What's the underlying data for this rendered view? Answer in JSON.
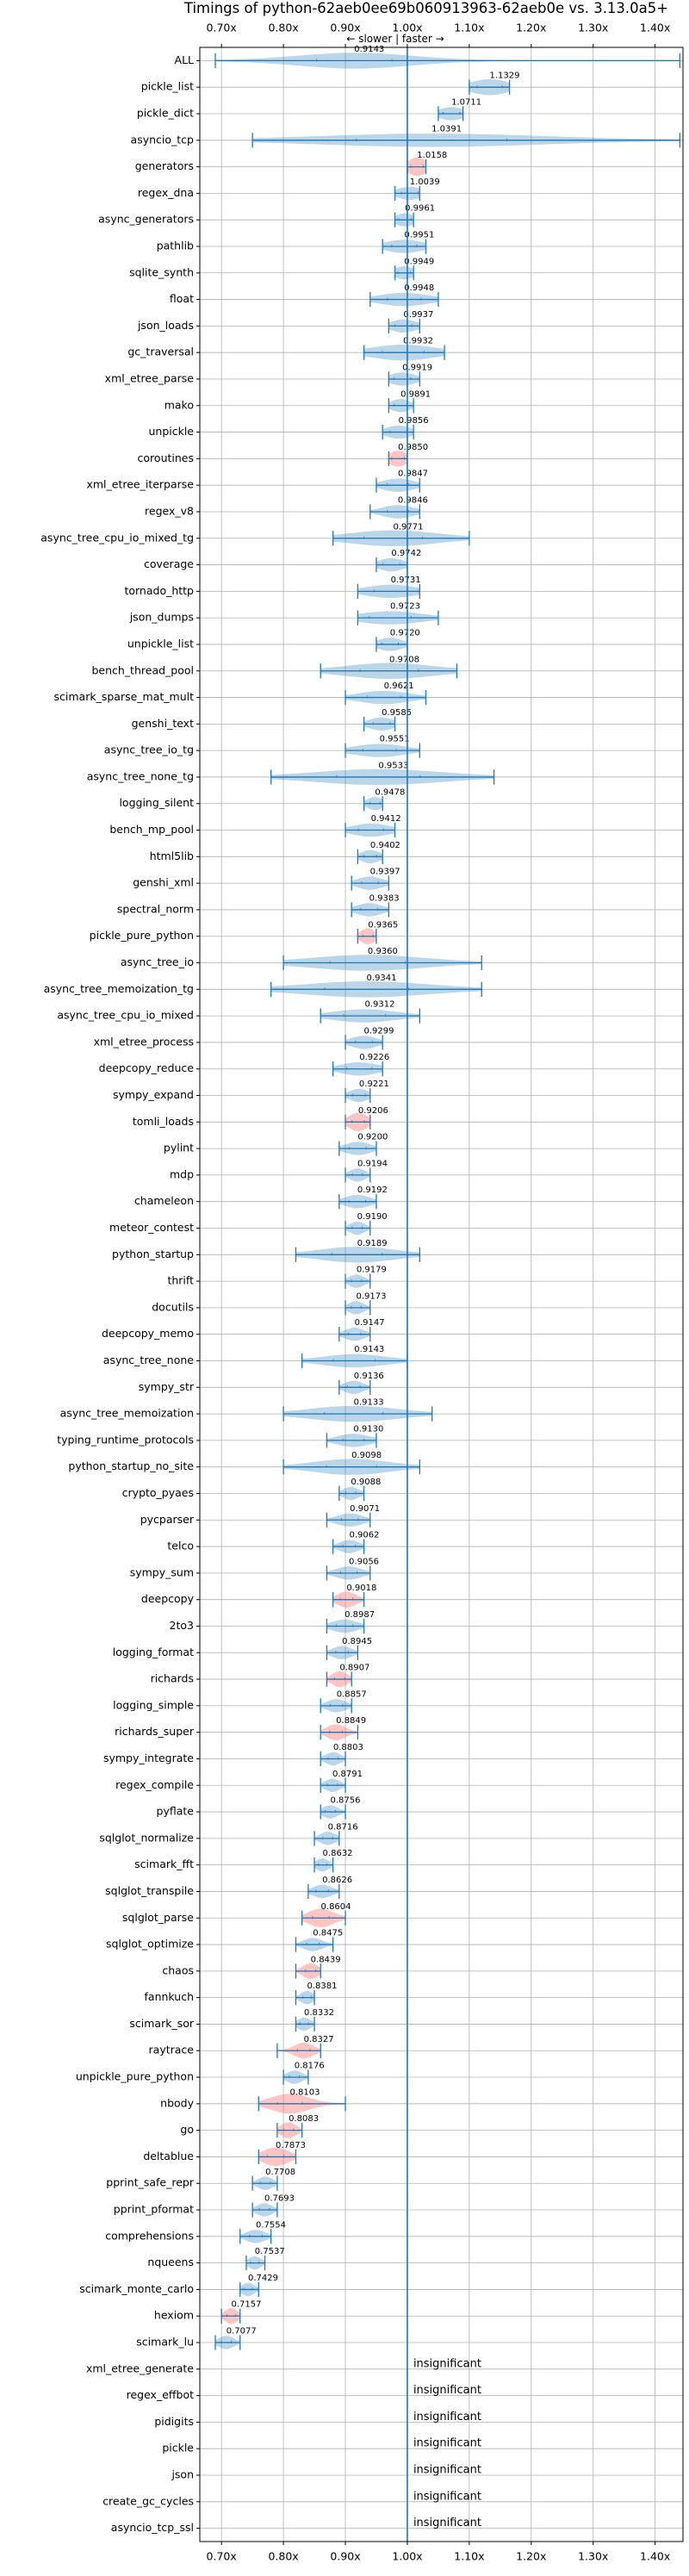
{
  "chart_data": {
    "type": "violin",
    "title": "Timings of python-62aeb0ee69b060913963-62aeb0e vs. 3.13.0a5+",
    "direction_label": "← slower | faster →",
    "x_ticks": [
      0.7,
      0.8,
      0.9,
      1.0,
      1.1,
      1.2,
      1.3,
      1.4
    ],
    "x_tick_labels": [
      "0.70x",
      "0.80x",
      "0.90x",
      "1.00x",
      "1.10x",
      "1.20x",
      "1.30x",
      "1.40x"
    ],
    "xlim": [
      0.665,
      1.445
    ],
    "insignificant_label": "insignificant",
    "colors": {
      "violin": "#1f77b4",
      "highlight": "#ff7f7f",
      "grid": "#b0b0b0"
    },
    "benchmarks": [
      {
        "name": "ALL",
        "value": 0.9143,
        "label": "0.9143",
        "min": 0.69,
        "max": 1.44,
        "spread": 0.09,
        "width": 0.6,
        "hl": false
      },
      {
        "name": "pickle_list",
        "value": 1.1329,
        "label": "1.1329",
        "min": 1.1,
        "max": 1.165,
        "spread": 0.03,
        "width": 0.6,
        "hl": false
      },
      {
        "name": "pickle_dict",
        "value": 1.0711,
        "label": "1.0711",
        "min": 1.05,
        "max": 1.09,
        "spread": 0.02,
        "width": 0.5,
        "hl": false
      },
      {
        "name": "asyncio_tcp",
        "value": 1.0391,
        "label": "1.0391",
        "min": 0.75,
        "max": 1.44,
        "spread": 0.18,
        "width": 0.5,
        "hl": false
      },
      {
        "name": "generators",
        "value": 1.0158,
        "label": "1.0158",
        "min": 1.0,
        "max": 1.03,
        "spread": 0.015,
        "width": 0.7,
        "hl": true
      },
      {
        "name": "regex_dna",
        "value": 1.0039,
        "label": "1.0039",
        "min": 0.98,
        "max": 1.02,
        "spread": 0.02,
        "width": 0.5,
        "hl": false
      },
      {
        "name": "async_generators",
        "value": 0.9961,
        "label": "0.9961",
        "min": 0.98,
        "max": 1.01,
        "spread": 0.015,
        "width": 0.5,
        "hl": false
      },
      {
        "name": "pathlib",
        "value": 0.9951,
        "label": "0.9951",
        "min": 0.96,
        "max": 1.03,
        "spread": 0.03,
        "width": 0.5,
        "hl": false
      },
      {
        "name": "sqlite_synth",
        "value": 0.9949,
        "label": "0.9949",
        "min": 0.98,
        "max": 1.01,
        "spread": 0.015,
        "width": 0.5,
        "hl": false
      },
      {
        "name": "float",
        "value": 0.9948,
        "label": "0.9948",
        "min": 0.94,
        "max": 1.05,
        "spread": 0.04,
        "width": 0.5,
        "hl": false
      },
      {
        "name": "json_loads",
        "value": 0.9937,
        "label": "0.9937",
        "min": 0.97,
        "max": 1.02,
        "spread": 0.02,
        "width": 0.5,
        "hl": false
      },
      {
        "name": "gc_traversal",
        "value": 0.9932,
        "label": "0.9932",
        "min": 0.93,
        "max": 1.06,
        "spread": 0.05,
        "width": 0.6,
        "hl": false
      },
      {
        "name": "xml_etree_parse",
        "value": 0.9919,
        "label": "0.9919",
        "min": 0.97,
        "max": 1.02,
        "spread": 0.02,
        "width": 0.5,
        "hl": false
      },
      {
        "name": "mako",
        "value": 0.9891,
        "label": "0.9891",
        "min": 0.97,
        "max": 1.01,
        "spread": 0.015,
        "width": 0.5,
        "hl": false
      },
      {
        "name": "unpickle",
        "value": 0.9856,
        "label": "0.9856",
        "min": 0.96,
        "max": 1.01,
        "spread": 0.02,
        "width": 0.5,
        "hl": false
      },
      {
        "name": "coroutines",
        "value": 0.985,
        "label": "0.9850",
        "min": 0.97,
        "max": 1.0,
        "spread": 0.015,
        "width": 0.6,
        "hl": true
      },
      {
        "name": "xml_etree_iterparse",
        "value": 0.9847,
        "label": "0.9847",
        "min": 0.95,
        "max": 1.02,
        "spread": 0.025,
        "width": 0.5,
        "hl": false
      },
      {
        "name": "regex_v8",
        "value": 0.9846,
        "label": "0.9846",
        "min": 0.94,
        "max": 1.02,
        "spread": 0.025,
        "width": 0.5,
        "hl": false
      },
      {
        "name": "async_tree_cpu_io_mixed_tg",
        "value": 0.9771,
        "label": "0.9771",
        "min": 0.88,
        "max": 1.1,
        "spread": 0.07,
        "width": 0.6,
        "hl": false
      },
      {
        "name": "coverage",
        "value": 0.9742,
        "label": "0.9742",
        "min": 0.95,
        "max": 1.0,
        "spread": 0.02,
        "width": 0.5,
        "hl": false
      },
      {
        "name": "tornado_http",
        "value": 0.9731,
        "label": "0.9731",
        "min": 0.92,
        "max": 1.02,
        "spread": 0.04,
        "width": 0.5,
        "hl": false
      },
      {
        "name": "json_dumps",
        "value": 0.9723,
        "label": "0.9723",
        "min": 0.92,
        "max": 1.05,
        "spread": 0.05,
        "width": 0.5,
        "hl": false
      },
      {
        "name": "unpickle_list",
        "value": 0.972,
        "label": "0.9720",
        "min": 0.95,
        "max": 1.0,
        "spread": 0.02,
        "width": 0.5,
        "hl": false
      },
      {
        "name": "bench_thread_pool",
        "value": 0.9708,
        "label": "0.9708",
        "min": 0.86,
        "max": 1.08,
        "spread": 0.07,
        "width": 0.6,
        "hl": false
      },
      {
        "name": "scimark_sparse_mat_mult",
        "value": 0.9621,
        "label": "0.9621",
        "min": 0.9,
        "max": 1.03,
        "spread": 0.04,
        "width": 0.5,
        "hl": false
      },
      {
        "name": "genshi_text",
        "value": 0.9585,
        "label": "0.9585",
        "min": 0.93,
        "max": 0.98,
        "spread": 0.02,
        "width": 0.5,
        "hl": false
      },
      {
        "name": "async_tree_io_tg",
        "value": 0.9551,
        "label": "0.9551",
        "min": 0.9,
        "max": 1.02,
        "spread": 0.04,
        "width": 0.5,
        "hl": false
      },
      {
        "name": "async_tree_none_tg",
        "value": 0.9533,
        "label": "0.9533",
        "min": 0.78,
        "max": 1.14,
        "spread": 0.1,
        "width": 0.6,
        "hl": false
      },
      {
        "name": "logging_silent",
        "value": 0.9478,
        "label": "0.9478",
        "min": 0.93,
        "max": 0.96,
        "spread": 0.012,
        "width": 0.5,
        "hl": false
      },
      {
        "name": "bench_mp_pool",
        "value": 0.9412,
        "label": "0.9412",
        "min": 0.9,
        "max": 0.98,
        "spread": 0.03,
        "width": 0.5,
        "hl": false
      },
      {
        "name": "html5lib",
        "value": 0.9402,
        "label": "0.9402",
        "min": 0.92,
        "max": 0.96,
        "spread": 0.015,
        "width": 0.5,
        "hl": false
      },
      {
        "name": "genshi_xml",
        "value": 0.9397,
        "label": "0.9397",
        "min": 0.91,
        "max": 0.97,
        "spread": 0.02,
        "width": 0.5,
        "hl": false
      },
      {
        "name": "spectral_norm",
        "value": 0.9383,
        "label": "0.9383",
        "min": 0.91,
        "max": 0.97,
        "spread": 0.02,
        "width": 0.5,
        "hl": false
      },
      {
        "name": "pickle_pure_python",
        "value": 0.9365,
        "label": "0.9365",
        "min": 0.92,
        "max": 0.95,
        "spread": 0.012,
        "width": 0.6,
        "hl": true
      },
      {
        "name": "async_tree_io",
        "value": 0.936,
        "label": "0.9360",
        "min": 0.8,
        "max": 1.12,
        "spread": 0.09,
        "width": 0.6,
        "hl": false
      },
      {
        "name": "async_tree_memoization_tg",
        "value": 0.9341,
        "label": "0.9341",
        "min": 0.78,
        "max": 1.12,
        "spread": 0.1,
        "width": 0.6,
        "hl": false
      },
      {
        "name": "async_tree_cpu_io_mixed",
        "value": 0.9312,
        "label": "0.9312",
        "min": 0.86,
        "max": 1.02,
        "spread": 0.05,
        "width": 0.5,
        "hl": false
      },
      {
        "name": "xml_etree_process",
        "value": 0.9299,
        "label": "0.9299",
        "min": 0.9,
        "max": 0.96,
        "spread": 0.02,
        "width": 0.5,
        "hl": false
      },
      {
        "name": "deepcopy_reduce",
        "value": 0.9226,
        "label": "0.9226",
        "min": 0.88,
        "max": 0.96,
        "spread": 0.03,
        "width": 0.5,
        "hl": false
      },
      {
        "name": "sympy_expand",
        "value": 0.9221,
        "label": "0.9221",
        "min": 0.9,
        "max": 0.94,
        "spread": 0.015,
        "width": 0.5,
        "hl": false
      },
      {
        "name": "tomli_loads",
        "value": 0.9206,
        "label": "0.9206",
        "min": 0.9,
        "max": 0.94,
        "spread": 0.015,
        "width": 0.7,
        "hl": true
      },
      {
        "name": "pylint",
        "value": 0.92,
        "label": "0.9200",
        "min": 0.89,
        "max": 0.95,
        "spread": 0.02,
        "width": 0.5,
        "hl": false
      },
      {
        "name": "mdp",
        "value": 0.9194,
        "label": "0.9194",
        "min": 0.9,
        "max": 0.94,
        "spread": 0.012,
        "width": 0.5,
        "hl": false
      },
      {
        "name": "chameleon",
        "value": 0.9192,
        "label": "0.9192",
        "min": 0.89,
        "max": 0.95,
        "spread": 0.02,
        "width": 0.5,
        "hl": false
      },
      {
        "name": "meteor_contest",
        "value": 0.919,
        "label": "0.9190",
        "min": 0.9,
        "max": 0.94,
        "spread": 0.012,
        "width": 0.5,
        "hl": false
      },
      {
        "name": "python_startup",
        "value": 0.9189,
        "label": "0.9189",
        "min": 0.82,
        "max": 1.02,
        "spread": 0.06,
        "width": 0.6,
        "hl": false
      },
      {
        "name": "thrift",
        "value": 0.9179,
        "label": "0.9179",
        "min": 0.9,
        "max": 0.94,
        "spread": 0.012,
        "width": 0.5,
        "hl": false
      },
      {
        "name": "docutils",
        "value": 0.9173,
        "label": "0.9173",
        "min": 0.9,
        "max": 0.94,
        "spread": 0.012,
        "width": 0.5,
        "hl": false
      },
      {
        "name": "deepcopy_memo",
        "value": 0.9147,
        "label": "0.9147",
        "min": 0.89,
        "max": 0.94,
        "spread": 0.015,
        "width": 0.5,
        "hl": false
      },
      {
        "name": "async_tree_none",
        "value": 0.9143,
        "label": "0.9143",
        "min": 0.83,
        "max": 1.0,
        "spread": 0.05,
        "width": 0.5,
        "hl": false
      },
      {
        "name": "sympy_str",
        "value": 0.9136,
        "label": "0.9136",
        "min": 0.89,
        "max": 0.94,
        "spread": 0.015,
        "width": 0.5,
        "hl": false
      },
      {
        "name": "async_tree_memoization",
        "value": 0.9133,
        "label": "0.9133",
        "min": 0.8,
        "max": 1.04,
        "spread": 0.07,
        "width": 0.6,
        "hl": false
      },
      {
        "name": "typing_runtime_protocols",
        "value": 0.913,
        "label": "0.9130",
        "min": 0.87,
        "max": 0.95,
        "spread": 0.025,
        "width": 0.5,
        "hl": false
      },
      {
        "name": "python_startup_no_site",
        "value": 0.9098,
        "label": "0.9098",
        "min": 0.8,
        "max": 1.02,
        "spread": 0.06,
        "width": 0.6,
        "hl": false
      },
      {
        "name": "crypto_pyaes",
        "value": 0.9088,
        "label": "0.9088",
        "min": 0.89,
        "max": 0.93,
        "spread": 0.012,
        "width": 0.5,
        "hl": false
      },
      {
        "name": "pycparser",
        "value": 0.9071,
        "label": "0.9071",
        "min": 0.87,
        "max": 0.94,
        "spread": 0.02,
        "width": 0.5,
        "hl": false
      },
      {
        "name": "telco",
        "value": 0.9062,
        "label": "0.9062",
        "min": 0.88,
        "max": 0.93,
        "spread": 0.015,
        "width": 0.5,
        "hl": false
      },
      {
        "name": "sympy_sum",
        "value": 0.9056,
        "label": "0.9056",
        "min": 0.87,
        "max": 0.94,
        "spread": 0.02,
        "width": 0.5,
        "hl": false
      },
      {
        "name": "deepcopy",
        "value": 0.9018,
        "label": "0.9018",
        "min": 0.88,
        "max": 0.93,
        "spread": 0.015,
        "width": 0.6,
        "hl": true
      },
      {
        "name": "2to3",
        "value": 0.8987,
        "label": "0.8987",
        "min": 0.87,
        "max": 0.93,
        "spread": 0.02,
        "width": 0.5,
        "hl": false
      },
      {
        "name": "logging_format",
        "value": 0.8945,
        "label": "0.8945",
        "min": 0.87,
        "max": 0.92,
        "spread": 0.015,
        "width": 0.5,
        "hl": false
      },
      {
        "name": "richards",
        "value": 0.8907,
        "label": "0.8907",
        "min": 0.87,
        "max": 0.91,
        "spread": 0.012,
        "width": 0.6,
        "hl": true
      },
      {
        "name": "logging_simple",
        "value": 0.8857,
        "label": "0.8857",
        "min": 0.86,
        "max": 0.91,
        "spread": 0.015,
        "width": 0.5,
        "hl": false
      },
      {
        "name": "richards_super",
        "value": 0.8849,
        "label": "0.8849",
        "min": 0.86,
        "max": 0.92,
        "spread": 0.015,
        "width": 0.6,
        "hl": true
      },
      {
        "name": "sympy_integrate",
        "value": 0.8803,
        "label": "0.8803",
        "min": 0.86,
        "max": 0.9,
        "spread": 0.012,
        "width": 0.5,
        "hl": false
      },
      {
        "name": "regex_compile",
        "value": 0.8791,
        "label": "0.8791",
        "min": 0.86,
        "max": 0.9,
        "spread": 0.012,
        "width": 0.5,
        "hl": false
      },
      {
        "name": "pyflate",
        "value": 0.8756,
        "label": "0.8756",
        "min": 0.86,
        "max": 0.9,
        "spread": 0.012,
        "width": 0.5,
        "hl": false
      },
      {
        "name": "sqlglot_normalize",
        "value": 0.8716,
        "label": "0.8716",
        "min": 0.85,
        "max": 0.89,
        "spread": 0.012,
        "width": 0.5,
        "hl": false
      },
      {
        "name": "scimark_fft",
        "value": 0.8632,
        "label": "0.8632",
        "min": 0.85,
        "max": 0.88,
        "spread": 0.01,
        "width": 0.5,
        "hl": false
      },
      {
        "name": "sqlglot_transpile",
        "value": 0.8626,
        "label": "0.8626",
        "min": 0.84,
        "max": 0.89,
        "spread": 0.015,
        "width": 0.5,
        "hl": false
      },
      {
        "name": "sqlglot_parse",
        "value": 0.8604,
        "label": "0.8604",
        "min": 0.83,
        "max": 0.9,
        "spread": 0.02,
        "width": 0.7,
        "hl": true
      },
      {
        "name": "sqlglot_optimize",
        "value": 0.8475,
        "label": "0.8475",
        "min": 0.82,
        "max": 0.88,
        "spread": 0.015,
        "width": 0.5,
        "hl": false
      },
      {
        "name": "chaos",
        "value": 0.8439,
        "label": "0.8439",
        "min": 0.82,
        "max": 0.86,
        "spread": 0.012,
        "width": 0.6,
        "hl": true
      },
      {
        "name": "fannkuch",
        "value": 0.8381,
        "label": "0.8381",
        "min": 0.82,
        "max": 0.85,
        "spread": 0.01,
        "width": 0.5,
        "hl": false
      },
      {
        "name": "scimark_sor",
        "value": 0.8332,
        "label": "0.8332",
        "min": 0.82,
        "max": 0.85,
        "spread": 0.01,
        "width": 0.5,
        "hl": false
      },
      {
        "name": "raytrace",
        "value": 0.8327,
        "label": "0.8327",
        "min": 0.79,
        "max": 0.86,
        "spread": 0.015,
        "width": 0.6,
        "hl": true
      },
      {
        "name": "unpickle_pure_python",
        "value": 0.8176,
        "label": "0.8176",
        "min": 0.8,
        "max": 0.84,
        "spread": 0.012,
        "width": 0.5,
        "hl": false
      },
      {
        "name": "nbody",
        "value": 0.8103,
        "label": "0.8103",
        "min": 0.76,
        "max": 0.9,
        "spread": 0.03,
        "width": 0.75,
        "hl": true
      },
      {
        "name": "go",
        "value": 0.8083,
        "label": "0.8083",
        "min": 0.79,
        "max": 0.83,
        "spread": 0.012,
        "width": 0.6,
        "hl": true
      },
      {
        "name": "deltablue",
        "value": 0.7873,
        "label": "0.7873",
        "min": 0.76,
        "max": 0.82,
        "spread": 0.02,
        "width": 0.7,
        "hl": true
      },
      {
        "name": "pprint_safe_repr",
        "value": 0.7708,
        "label": "0.7708",
        "min": 0.75,
        "max": 0.79,
        "spread": 0.012,
        "width": 0.5,
        "hl": false
      },
      {
        "name": "pprint_pformat",
        "value": 0.7693,
        "label": "0.7693",
        "min": 0.75,
        "max": 0.79,
        "spread": 0.012,
        "width": 0.5,
        "hl": false
      },
      {
        "name": "comprehensions",
        "value": 0.7554,
        "label": "0.7554",
        "min": 0.73,
        "max": 0.78,
        "spread": 0.015,
        "width": 0.5,
        "hl": false
      },
      {
        "name": "nqueens",
        "value": 0.7537,
        "label": "0.7537",
        "min": 0.74,
        "max": 0.77,
        "spread": 0.01,
        "width": 0.5,
        "hl": false
      },
      {
        "name": "scimark_monte_carlo",
        "value": 0.7429,
        "label": "0.7429",
        "min": 0.73,
        "max": 0.76,
        "spread": 0.01,
        "width": 0.5,
        "hl": false
      },
      {
        "name": "hexiom",
        "value": 0.7157,
        "label": "0.7157",
        "min": 0.7,
        "max": 0.73,
        "spread": 0.01,
        "width": 0.6,
        "hl": true
      },
      {
        "name": "scimark_lu",
        "value": 0.7077,
        "label": "0.7077",
        "min": 0.69,
        "max": 0.73,
        "spread": 0.012,
        "width": 0.5,
        "hl": false
      },
      {
        "name": "xml_etree_generate",
        "value": null,
        "label": "insignificant"
      },
      {
        "name": "regex_effbot",
        "value": null,
        "label": "insignificant"
      },
      {
        "name": "pidigits",
        "value": null,
        "label": "insignificant"
      },
      {
        "name": "pickle",
        "value": null,
        "label": "insignificant"
      },
      {
        "name": "json",
        "value": null,
        "label": "insignificant"
      },
      {
        "name": "create_gc_cycles",
        "value": null,
        "label": "insignificant"
      },
      {
        "name": "asyncio_tcp_ssl",
        "value": null,
        "label": "insignificant"
      }
    ]
  }
}
